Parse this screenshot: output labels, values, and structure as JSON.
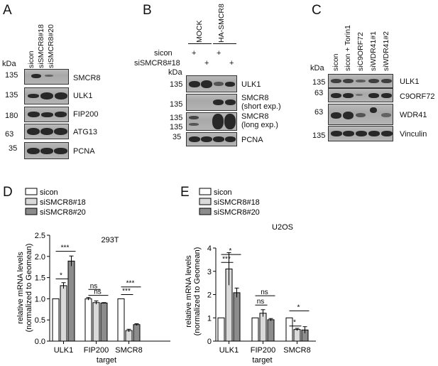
{
  "panels": {
    "A": {
      "label": "A",
      "kda": "kDa",
      "lanes": [
        "sicon",
        "siSMCR8#18",
        "siSMCR8#20"
      ],
      "rows": [
        {
          "mw": "135",
          "name": "SMCR8"
        },
        {
          "mw": "135",
          "name": "ULK1"
        },
        {
          "mw": "180",
          "name": "FIP200"
        },
        {
          "mw": "63",
          "name": "ATG13"
        },
        {
          "mw": "35",
          "name": "PCNA"
        }
      ]
    },
    "B": {
      "label": "B",
      "kda": "kDa",
      "groups": [
        "MOCK",
        "HA-SMCR8"
      ],
      "cond_labels": [
        "sicon",
        "siSMCR8#18"
      ],
      "sicon_marks": [
        "+",
        "",
        "+",
        ""
      ],
      "si18_marks": [
        "",
        "+",
        "",
        "+"
      ],
      "rows": [
        {
          "mw": "135",
          "name": "ULK1"
        },
        {
          "mw": "135",
          "name": "SMCR8",
          "sub": "(short exp.)"
        },
        {
          "mw": "135",
          "mw2": "135",
          "name": "SMCR8",
          "sub": "(long exp.)"
        },
        {
          "mw": "35",
          "name": "PCNA"
        }
      ]
    },
    "C": {
      "label": "C",
      "kda": "kDa",
      "lanes": [
        "sicon",
        "sicon + Torin1",
        "siC9ORF72",
        "siWDR41#1",
        "siWDR41#2"
      ],
      "rows": [
        {
          "mw": "135",
          "name": "ULK1"
        },
        {
          "mw": "63",
          "name": "C9ORF72"
        },
        {
          "mw": "63",
          "name": "WDR41"
        },
        {
          "mw": "135",
          "name": "Vinculin"
        }
      ]
    }
  },
  "chart_data": [
    {
      "panel": "D",
      "type": "bar",
      "title": "293T",
      "categories": [
        "ULK1",
        "FIP200",
        "SMCR8"
      ],
      "xlabel": "target",
      "ylabel": "relative mRNA levels (normalized to Geomean)",
      "ylim": [
        0,
        2.5
      ],
      "yticks": [
        "0.0",
        "0.5",
        "1.0",
        "1.5",
        "2.0",
        "2.5"
      ],
      "series": [
        {
          "name": "sicon",
          "color": "#ffffff",
          "values": [
            1.0,
            1.0,
            1.0
          ],
          "errors": [
            0,
            0.03,
            0
          ]
        },
        {
          "name": "siSMCR8#18",
          "color": "#d9d9d9",
          "values": [
            1.31,
            0.91,
            0.25
          ],
          "errors": [
            0.07,
            0.04,
            0.03
          ]
        },
        {
          "name": "siSMCR8#20",
          "color": "#8c8c8c",
          "values": [
            1.89,
            0.9,
            0.39
          ],
          "errors": [
            0.12,
            0.01,
            0.02
          ]
        }
      ],
      "annotations": [
        "*",
        "***",
        "ns",
        "ns",
        "***",
        "***"
      ]
    },
    {
      "panel": "E",
      "type": "bar",
      "title": "U2OS",
      "categories": [
        "ULK1",
        "FIP200",
        "SMCR8"
      ],
      "xlabel": "target",
      "ylabel": "relative mRNA levels (normalized to Geomean)",
      "ylim": [
        0,
        4
      ],
      "yticks": [
        "0",
        "1",
        "2",
        "3",
        "4"
      ],
      "series": [
        {
          "name": "sicon",
          "color": "#ffffff",
          "values": [
            1.0,
            1.0,
            1.0
          ],
          "errors": [
            0,
            0,
            0
          ]
        },
        {
          "name": "siSMCR8#18",
          "color": "#d9d9d9",
          "values": [
            3.1,
            1.2,
            0.5
          ],
          "errors": [
            0.7,
            0.15,
            0.05
          ]
        },
        {
          "name": "siSMCR8#20",
          "color": "#8c8c8c",
          "values": [
            2.08,
            0.92,
            0.48
          ],
          "errors": [
            0.2,
            0.05,
            0.14
          ]
        }
      ],
      "annotations": [
        "***",
        "*",
        "ns",
        "ns",
        "*",
        "*"
      ]
    }
  ]
}
